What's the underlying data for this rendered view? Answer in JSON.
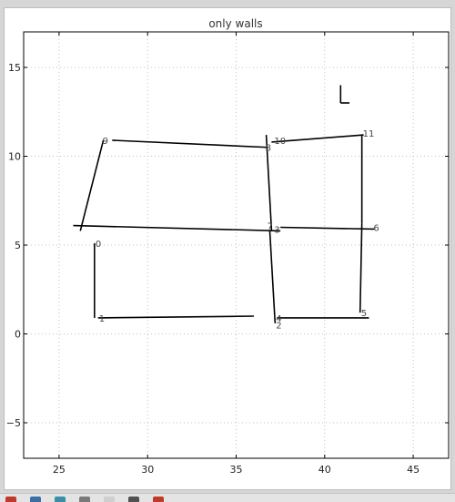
{
  "chart_data": {
    "type": "line",
    "title": "only walls",
    "xlim": [
      23,
      47
    ],
    "ylim": [
      -7,
      17
    ],
    "xticks": [
      25,
      30,
      35,
      40,
      45
    ],
    "yticks": [
      -5,
      0,
      5,
      10,
      15
    ],
    "grid": true,
    "grid_style": "dotted",
    "segments": [
      {
        "x": [
          27.0,
          27.0
        ],
        "y": [
          5.1,
          0.9
        ]
      },
      {
        "x": [
          27.2,
          36.0
        ],
        "y": [
          0.9,
          1.0
        ]
      },
      {
        "x": [
          26.2,
          27.5
        ],
        "y": [
          5.8,
          10.9
        ]
      },
      {
        "x": [
          28.0,
          36.8
        ],
        "y": [
          10.9,
          10.5
        ]
      },
      {
        "x": [
          25.8,
          37.5
        ],
        "y": [
          6.1,
          5.8
        ]
      },
      {
        "x": [
          36.7,
          37.0
        ],
        "y": [
          11.2,
          5.8
        ]
      },
      {
        "x": [
          36.9,
          37.2
        ],
        "y": [
          5.8,
          0.6
        ]
      },
      {
        "x": [
          37.0,
          42.2
        ],
        "y": [
          10.8,
          11.2
        ]
      },
      {
        "x": [
          42.1,
          42.1
        ],
        "y": [
          11.2,
          6.2
        ]
      },
      {
        "x": [
          37.5,
          42.8
        ],
        "y": [
          6.0,
          5.9
        ]
      },
      {
        "x": [
          42.1,
          42.0
        ],
        "y": [
          6.2,
          1.2
        ]
      },
      {
        "x": [
          37.3,
          42.5
        ],
        "y": [
          0.9,
          0.9
        ]
      },
      {
        "x": [
          40.9,
          40.9
        ],
        "y": [
          14.0,
          13.0
        ]
      },
      {
        "x": [
          40.9,
          41.4
        ],
        "y": [
          13.0,
          13.0
        ]
      }
    ],
    "annotations": [
      {
        "text": "0",
        "x": 27.0,
        "y": 5.0
      },
      {
        "text": "1",
        "x": 27.2,
        "y": 0.8
      },
      {
        "text": "2",
        "x": 37.2,
        "y": 0.4
      },
      {
        "text": "3",
        "x": 37.1,
        "y": 5.8
      },
      {
        "text": "4",
        "x": 37.2,
        "y": 0.8
      },
      {
        "text": "5",
        "x": 42.0,
        "y": 1.1
      },
      {
        "text": "6",
        "x": 42.7,
        "y": 5.9
      },
      {
        "text": "7",
        "x": 36.7,
        "y": 6.0
      },
      {
        "text": "8",
        "x": 36.6,
        "y": 10.4
      },
      {
        "text": "9",
        "x": 27.4,
        "y": 10.8
      },
      {
        "text": "10",
        "x": 37.1,
        "y": 10.8
      },
      {
        "text": "11",
        "x": 42.1,
        "y": 11.2
      }
    ],
    "line_color": "#000000",
    "grid_color": "#b0b0b0"
  },
  "taskbar": {
    "icons": [
      "app-icon-1",
      "app-icon-2",
      "app-icon-3",
      "app-icon-4",
      "app-icon-5",
      "app-icon-6",
      "app-icon-7"
    ],
    "colors": [
      "#c0392b",
      "#3a6ea5",
      "#3a8ea5",
      "#7a7a7a",
      "#cfcfcf",
      "#505050",
      "#c0392b"
    ]
  }
}
